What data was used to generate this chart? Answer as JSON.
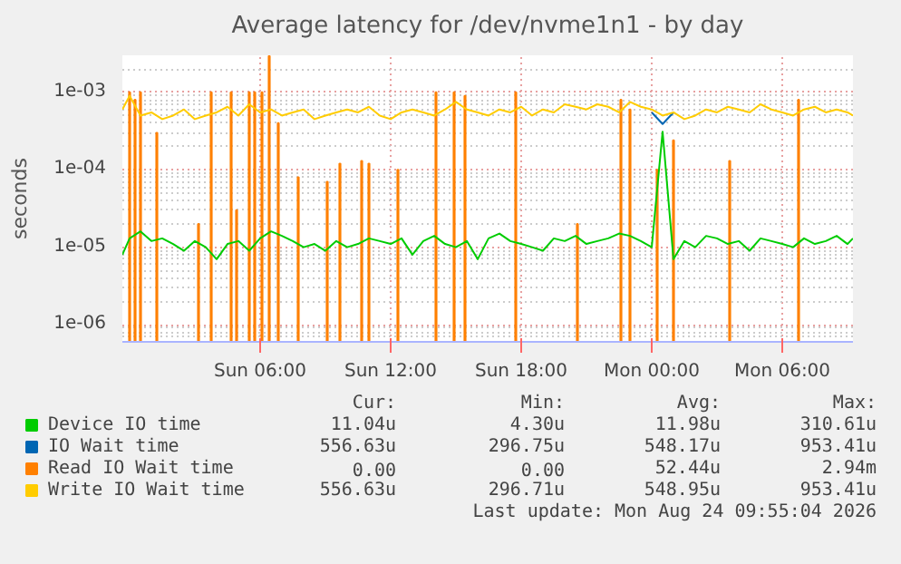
{
  "chart_data": {
    "type": "line",
    "title": "Average latency for /dev/nvme1n1 - by day",
    "ylabel": "seconds",
    "log": true,
    "grid": true,
    "legend": "bottom",
    "xlim": [
      "2026-08-22T23:40",
      "2026-08-24T09:15"
    ],
    "xticks": [
      {
        "value": "2026-08-23T06:00",
        "label": "Sun 06:00"
      },
      {
        "value": "2026-08-23T12:00",
        "label": "Sun 12:00"
      },
      {
        "value": "2026-08-23T18:00",
        "label": "Sun 18:00"
      },
      {
        "value": "2026-08-24T00:00",
        "label": "Mon 00:00"
      },
      {
        "value": "2026-08-24T06:00",
        "label": "Mon 06:00"
      }
    ],
    "ylim": [
      6e-07,
      0.003
    ],
    "yticks": [
      {
        "value": 1e-06,
        "label": "1e-06"
      },
      {
        "value": 1e-05,
        "label": "1e-05"
      },
      {
        "value": 0.0001,
        "label": "1e-04"
      },
      {
        "value": 0.001,
        "label": "1e-03"
      }
    ],
    "x": [
      "2026-08-22T23:40",
      "2026-08-23T00:00",
      "2026-08-23T00:30",
      "2026-08-23T01:00",
      "2026-08-23T01:30",
      "2026-08-23T02:00",
      "2026-08-23T02:30",
      "2026-08-23T03:00",
      "2026-08-23T03:30",
      "2026-08-23T04:00",
      "2026-08-23T04:30",
      "2026-08-23T05:00",
      "2026-08-23T05:30",
      "2026-08-23T06:00",
      "2026-08-23T06:30",
      "2026-08-23T07:00",
      "2026-08-23T07:30",
      "2026-08-23T08:00",
      "2026-08-23T08:30",
      "2026-08-23T09:00",
      "2026-08-23T09:30",
      "2026-08-23T10:00",
      "2026-08-23T10:30",
      "2026-08-23T11:00",
      "2026-08-23T11:30",
      "2026-08-23T12:00",
      "2026-08-23T12:30",
      "2026-08-23T13:00",
      "2026-08-23T13:30",
      "2026-08-23T14:00",
      "2026-08-23T14:30",
      "2026-08-23T15:00",
      "2026-08-23T15:30",
      "2026-08-23T16:00",
      "2026-08-23T16:30",
      "2026-08-23T17:00",
      "2026-08-23T17:30",
      "2026-08-23T18:00",
      "2026-08-23T18:30",
      "2026-08-23T19:00",
      "2026-08-23T19:30",
      "2026-08-23T20:00",
      "2026-08-23T20:30",
      "2026-08-23T21:00",
      "2026-08-23T21:30",
      "2026-08-23T22:00",
      "2026-08-23T22:30",
      "2026-08-23T23:00",
      "2026-08-23T23:30",
      "2026-08-24T00:00",
      "2026-08-24T00:30",
      "2026-08-24T01:00",
      "2026-08-24T01:30",
      "2026-08-24T02:00",
      "2026-08-24T02:30",
      "2026-08-24T03:00",
      "2026-08-24T03:30",
      "2026-08-24T04:00",
      "2026-08-24T04:30",
      "2026-08-24T05:00",
      "2026-08-24T05:30",
      "2026-08-24T06:00",
      "2026-08-24T06:30",
      "2026-08-24T07:00",
      "2026-08-24T07:30",
      "2026-08-24T08:00",
      "2026-08-24T08:30",
      "2026-08-24T09:00",
      "2026-08-24T09:15"
    ],
    "series": [
      {
        "name": "Device IO time",
        "color": "#00cc00",
        "values": [
          8e-06,
          1.3e-05,
          1.6e-05,
          1.2e-05,
          1.3e-05,
          1.1e-05,
          9e-06,
          1.2e-05,
          1e-05,
          7e-06,
          1.1e-05,
          1.2e-05,
          9e-06,
          1.3e-05,
          1.6e-05,
          1.4e-05,
          1.2e-05,
          1e-05,
          1.1e-05,
          9e-06,
          1.2e-05,
          1e-05,
          1.1e-05,
          1.3e-05,
          1.2e-05,
          1.1e-05,
          1.3e-05,
          8e-06,
          1.2e-05,
          1.4e-05,
          1.1e-05,
          1e-05,
          1.2e-05,
          7e-06,
          1.3e-05,
          1.5e-05,
          1.2e-05,
          1.1e-05,
          1e-05,
          9e-06,
          1.3e-05,
          1.2e-05,
          1.4e-05,
          1.1e-05,
          1.2e-05,
          1.3e-05,
          1.5e-05,
          1.4e-05,
          1.2e-05,
          1e-05,
          0.00031,
          7e-06,
          1.2e-05,
          1e-05,
          1.4e-05,
          1.3e-05,
          1.1e-05,
          1.2e-05,
          9e-06,
          1.3e-05,
          1.2e-05,
          1.1e-05,
          1e-05,
          1.3e-05,
          1.1e-05,
          1.2e-05,
          1.4e-05,
          1.1e-05,
          1.3e-05
        ]
      },
      {
        "name": "IO Wait time",
        "color": "#0066b3",
        "values": [
          null,
          null,
          null,
          null,
          null,
          null,
          null,
          null,
          null,
          null,
          null,
          null,
          null,
          null,
          null,
          null,
          null,
          null,
          null,
          null,
          null,
          null,
          null,
          null,
          null,
          null,
          null,
          null,
          null,
          null,
          null,
          null,
          null,
          null,
          null,
          null,
          null,
          null,
          null,
          null,
          null,
          null,
          null,
          null,
          null,
          null,
          null,
          null,
          null,
          0.00055,
          0.00039,
          0.00055,
          null,
          null,
          null,
          null,
          null,
          null,
          null,
          null,
          null,
          null,
          null,
          null,
          null,
          null,
          null,
          null,
          null
        ]
      },
      {
        "name": "Read IO Wait time",
        "color": "#ff8000",
        "type": "bar",
        "x": [
          "2026-08-23T00:00",
          "2026-08-23T00:15",
          "2026-08-23T00:30",
          "2026-08-23T01:15",
          "2026-08-23T03:10",
          "2026-08-23T03:45",
          "2026-08-23T04:40",
          "2026-08-23T04:55",
          "2026-08-23T05:30",
          "2026-08-23T05:45",
          "2026-08-23T06:05",
          "2026-08-23T06:25",
          "2026-08-23T06:50",
          "2026-08-23T07:45",
          "2026-08-23T09:05",
          "2026-08-23T09:40",
          "2026-08-23T10:40",
          "2026-08-23T11:00",
          "2026-08-23T12:20",
          "2026-08-23T14:05",
          "2026-08-23T14:55",
          "2026-08-23T15:25",
          "2026-08-23T17:45",
          "2026-08-23T20:35",
          "2026-08-23T22:35",
          "2026-08-23T23:00",
          "2026-08-24T00:15",
          "2026-08-24T01:00",
          "2026-08-24T03:35",
          "2026-08-24T06:45"
        ],
        "values": [
          0.001,
          0.0008,
          0.001,
          0.0003,
          2e-05,
          0.001,
          0.001,
          3e-05,
          0.001,
          0.001,
          0.001,
          0.00294,
          0.0004,
          8e-05,
          7e-05,
          0.00012,
          0.00013,
          0.00012,
          0.0001,
          0.001,
          0.001,
          0.0009,
          0.001,
          2e-05,
          0.0008,
          0.0006,
          0.0001,
          0.00024,
          0.00013,
          0.0008
        ]
      },
      {
        "name": "Write IO Wait time",
        "color": "#ffcc00",
        "values": [
          0.0006,
          0.0009,
          0.0005,
          0.00055,
          0.00045,
          0.0005,
          0.0006,
          0.00045,
          0.0005,
          0.00055,
          0.00065,
          0.0005,
          0.0007,
          0.00055,
          0.0006,
          0.0005,
          0.00055,
          0.0006,
          0.00045,
          0.0005,
          0.00055,
          0.0006,
          0.00055,
          0.00065,
          0.0005,
          0.00045,
          0.00055,
          0.0006,
          0.00055,
          0.0005,
          0.0006,
          0.00075,
          0.0006,
          0.00055,
          0.0005,
          0.0006,
          0.00055,
          0.00065,
          0.0005,
          0.0006,
          0.00055,
          0.0007,
          0.00065,
          0.0006,
          0.0007,
          0.00065,
          0.00055,
          0.00075,
          0.00065,
          0.0006,
          0.0005,
          0.00055,
          0.00045,
          0.0005,
          0.0006,
          0.00055,
          0.00065,
          0.0006,
          0.00055,
          0.0007,
          0.0006,
          0.00055,
          0.0005,
          0.0006,
          0.00065,
          0.00055,
          0.0006,
          0.00055,
          0.0005
        ]
      }
    ],
    "annotations": [
      "Cur:",
      "Min:",
      "Avg:",
      "Max:",
      "11.04u",
      "4.30u",
      "11.98u",
      "310.61u",
      "556.63u",
      "296.75u",
      "548.17u",
      "953.41u",
      "0.00",
      "0.00",
      "52.44u",
      "2.94m",
      "556.63u",
      "296.71u",
      "548.95u",
      "953.41u",
      "Last update: Mon Aug 24 09:55:04 2026"
    ]
  }
}
